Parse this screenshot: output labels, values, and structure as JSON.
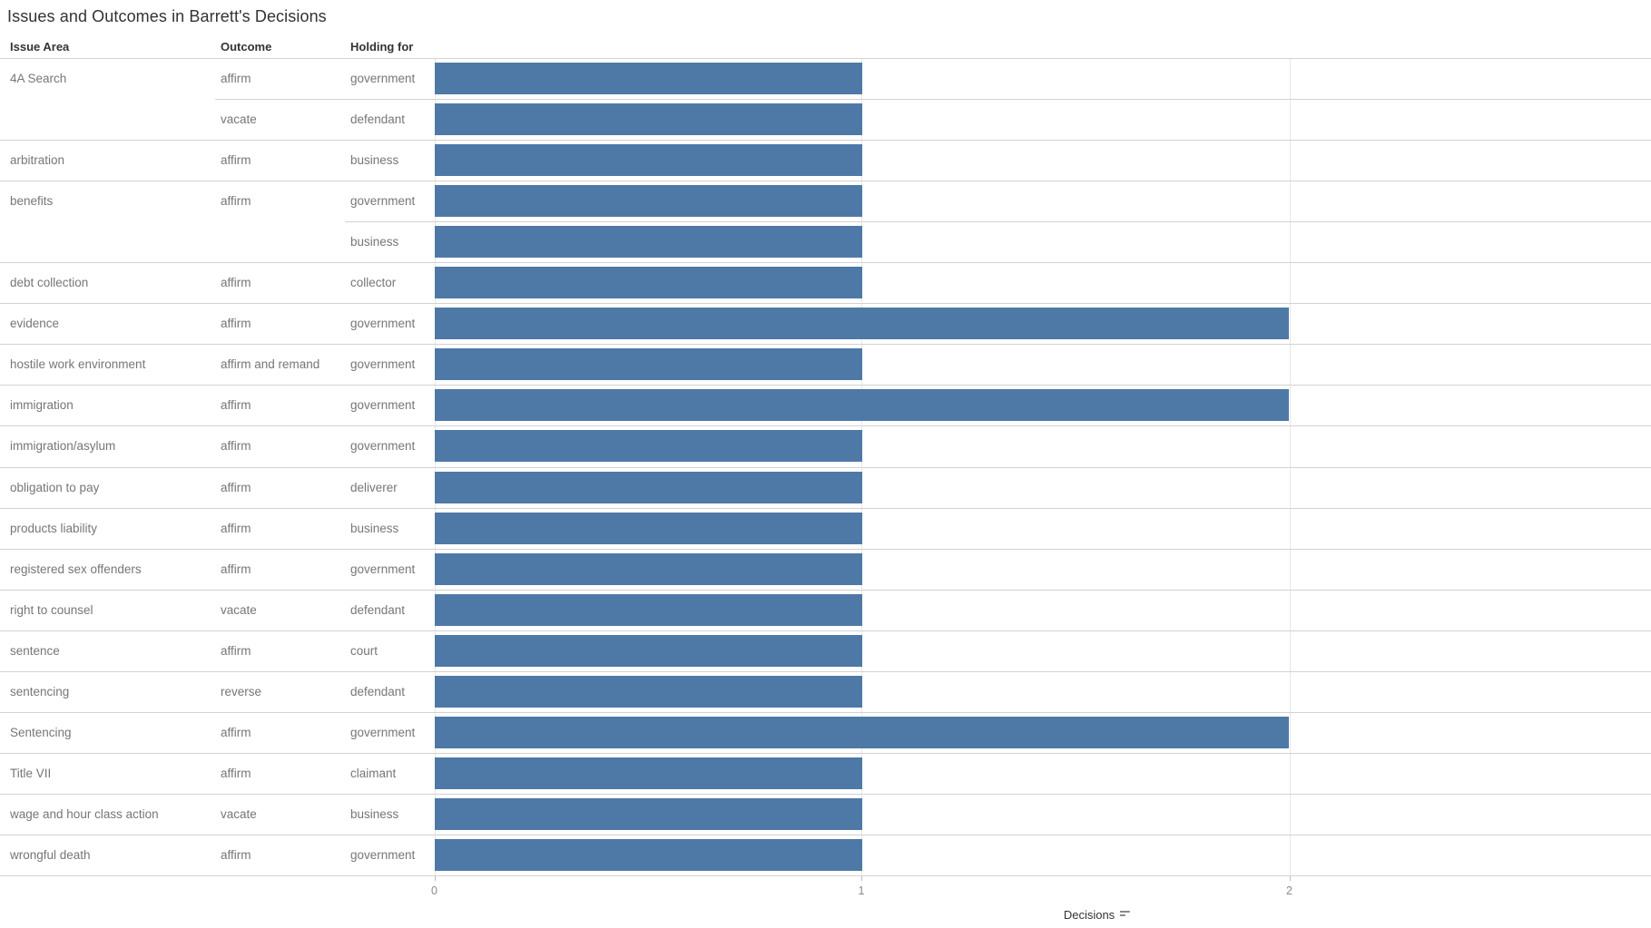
{
  "title": "Issues and Outcomes in Barrett's Decisions",
  "columns": {
    "issue": "Issue Area",
    "outcome": "Outcome",
    "holding": "Holding for"
  },
  "axis": {
    "tick_labels": [
      "0",
      "1",
      "2"
    ],
    "label": "Decisions"
  },
  "colors": {
    "bar": "#4e79a7",
    "separator": "#d2d2d2",
    "gridline": "#e7e7e7",
    "header_text": "#333333",
    "cell_text": "#767676",
    "tick_text": "#8a8a8a"
  },
  "chart_data": {
    "type": "bar",
    "orientation": "horizontal",
    "title": "Issues and Outcomes in Barrett's Decisions",
    "xlabel": "Decisions",
    "xlim": [
      0,
      2.85
    ],
    "grid": true,
    "legend": "none",
    "rows": [
      {
        "issue": "4A Search",
        "outcome": "affirm",
        "holding": "government",
        "decisions": 1
      },
      {
        "issue": "",
        "outcome": "vacate",
        "holding": "defendant",
        "decisions": 1
      },
      {
        "issue": "arbitration",
        "outcome": "affirm",
        "holding": "business",
        "decisions": 1
      },
      {
        "issue": "benefits",
        "outcome": "affirm",
        "holding": "government",
        "decisions": 1
      },
      {
        "issue": "",
        "outcome": "",
        "holding": "business",
        "decisions": 1
      },
      {
        "issue": "debt collection",
        "outcome": "affirm",
        "holding": "collector",
        "decisions": 1
      },
      {
        "issue": "evidence",
        "outcome": "affirm",
        "holding": "government",
        "decisions": 2
      },
      {
        "issue": "hostile work environment",
        "outcome": "affirm and remand",
        "holding": "government",
        "decisions": 1
      },
      {
        "issue": "immigration",
        "outcome": "affirm",
        "holding": "government",
        "decisions": 2
      },
      {
        "issue": "immigration/asylum",
        "outcome": "affirm",
        "holding": "government",
        "decisions": 1
      },
      {
        "issue": "obligation to pay",
        "outcome": "affirm",
        "holding": "deliverer",
        "decisions": 1
      },
      {
        "issue": "products liability",
        "outcome": "affirm",
        "holding": "business",
        "decisions": 1
      },
      {
        "issue": "registered sex offenders",
        "outcome": "affirm",
        "holding": "government",
        "decisions": 1
      },
      {
        "issue": "right to counsel",
        "outcome": "vacate",
        "holding": "defendant",
        "decisions": 1
      },
      {
        "issue": "sentence",
        "outcome": "affirm",
        "holding": "court",
        "decisions": 1
      },
      {
        "issue": "sentencing",
        "outcome": "reverse",
        "holding": "defendant",
        "decisions": 1
      },
      {
        "issue": "Sentencing",
        "outcome": "affirm",
        "holding": "government",
        "decisions": 2
      },
      {
        "issue": "Title VII",
        "outcome": "affirm",
        "holding": "claimant",
        "decisions": 1
      },
      {
        "issue": "wage and hour class action",
        "outcome": "vacate",
        "holding": "business",
        "decisions": 1
      },
      {
        "issue": "wrongful death",
        "outcome": "affirm",
        "holding": "government",
        "decisions": 1
      }
    ]
  }
}
